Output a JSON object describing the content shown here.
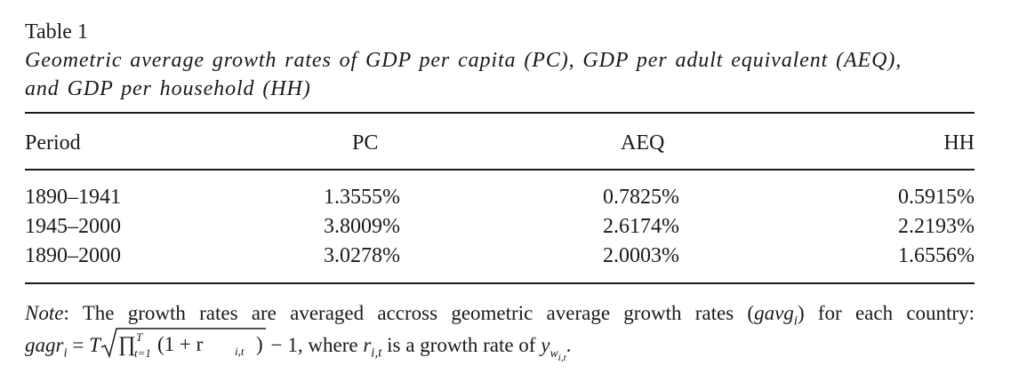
{
  "table_label": "Table 1",
  "caption": {
    "line1": "Geometric average growth rates of GDP per capita (PC), GDP per adult equivalent (AEQ),",
    "line2": "and GDP per household (HH)"
  },
  "columns": [
    "Period",
    "PC",
    "AEQ",
    "HH"
  ],
  "rows": [
    [
      "1890–1941",
      "1.3555%",
      "0.7825%",
      "0.5915%"
    ],
    [
      "1945–2000",
      "3.8009%",
      "2.6174%",
      "2.2193%"
    ],
    [
      "1890–2000",
      "3.0278%",
      "2.0003%",
      "1.6556%"
    ]
  ],
  "note": {
    "label": "Note",
    "text1": ": The growth rates are averaged accross geometric average growth rates (",
    "gavg": "gavg",
    "gavg_sub": "i",
    "text2": ") for each country:",
    "gagr": "gagr",
    "gagr_sub": "i",
    "eq": " = ",
    "T": "T",
    "prod_upper": "T",
    "prod_lower": "t=1",
    "product_body": "(1 + r",
    "r_sub": "i,t",
    "close": ")",
    "minus_one": " − 1, where ",
    "r": "r",
    "r2_sub": "i,t",
    "is_rate": " is a growth rate of ",
    "y": "y",
    "y_sub": "w",
    "y_subsub": "i,t",
    "end": "."
  }
}
